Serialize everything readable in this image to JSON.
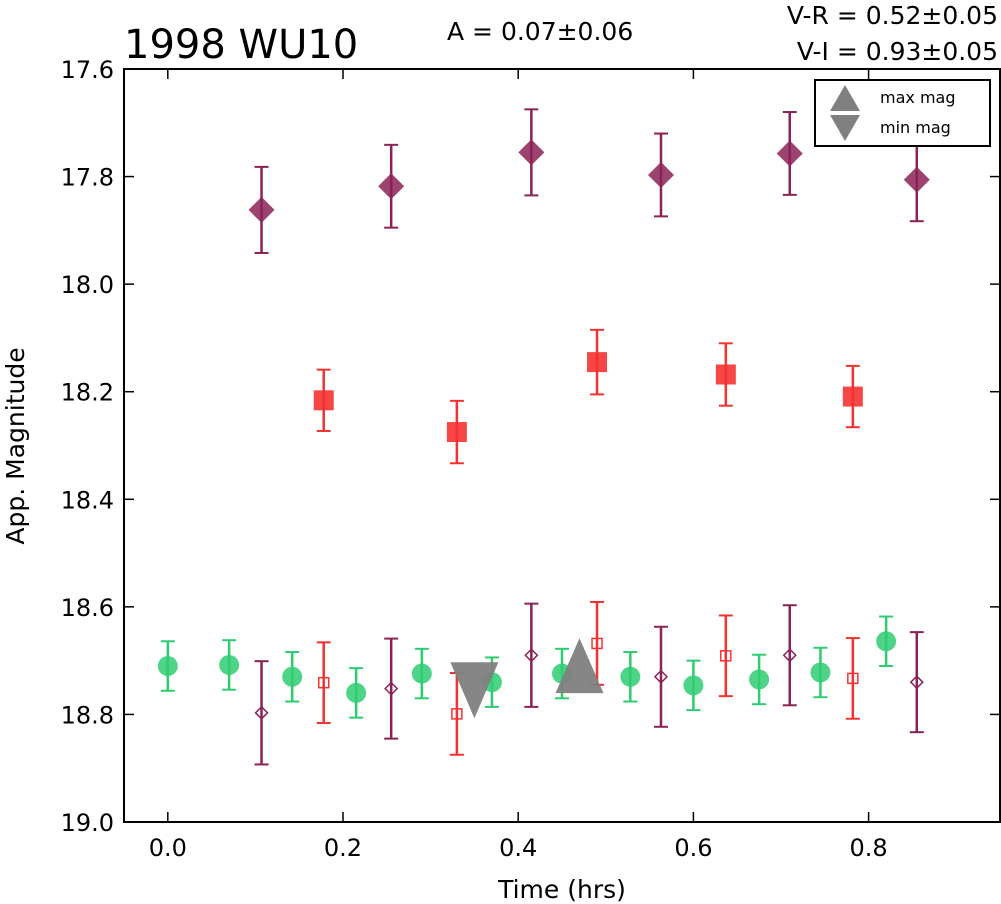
{
  "chart_data": {
    "type": "scatter",
    "title": "1998 WU10",
    "xlabel": "Time (hrs)",
    "ylabel": "App. Magnitude",
    "xlim": [
      -0.05,
      0.95
    ],
    "ylim": [
      19.0,
      17.6
    ],
    "y_inverted": true,
    "xticks": [
      "0.0",
      "0.2",
      "0.4",
      "0.6",
      "0.8"
    ],
    "xtick_values": [
      0.0,
      0.2,
      0.4,
      0.6,
      0.8
    ],
    "yticks": [
      "17.6",
      "17.8",
      "18.0",
      "18.2",
      "18.4",
      "18.6",
      "18.8",
      "19.0"
    ],
    "ytick_values": [
      17.6,
      17.8,
      18.0,
      18.2,
      18.4,
      18.6,
      18.8,
      19.0
    ],
    "annotations": {
      "amplitude": "A  = 0.07±0.06",
      "v_r": "V-R = 0.52±0.05",
      "v_i": "V-I  = 0.93±0.05"
    },
    "legend": {
      "position": "top-right",
      "entries": [
        {
          "label": "max mag",
          "marker": "triangle-up"
        },
        {
          "label": "min mag",
          "marker": "triangle-down"
        }
      ]
    },
    "series": [
      {
        "marker": "diamond-filled",
        "color": "#8b2257",
        "x": [
          0.107,
          0.255,
          0.415,
          0.563,
          0.71,
          0.855
        ],
        "y": [
          17.862,
          17.818,
          17.755,
          17.797,
          17.757,
          17.806
        ],
        "err": [
          0.08,
          0.077,
          0.08,
          0.077,
          0.077,
          0.077
        ]
      },
      {
        "marker": "square-filled",
        "color": "#f53232",
        "x": [
          0.178,
          0.33,
          0.49,
          0.637,
          0.782
        ],
        "y": [
          18.216,
          18.275,
          18.145,
          18.168,
          18.209
        ],
        "err": [
          0.057,
          0.058,
          0.06,
          0.058,
          0.057
        ]
      },
      {
        "marker": "circle-filled",
        "color": "#2ecc71",
        "x": [
          0.0,
          0.07,
          0.142,
          0.215,
          0.29,
          0.37,
          0.45,
          0.528,
          0.6,
          0.675,
          0.745,
          0.82
        ],
        "y": [
          18.71,
          18.708,
          18.73,
          18.76,
          18.724,
          18.74,
          18.724,
          18.73,
          18.746,
          18.735,
          18.722,
          18.664
        ],
        "err": [
          0.046,
          0.046,
          0.046,
          0.046,
          0.046,
          0.046,
          0.046,
          0.046,
          0.046,
          0.046,
          0.046,
          0.046
        ]
      },
      {
        "marker": "square-open",
        "color": "#f53232",
        "x": [
          0.178,
          0.33,
          0.49,
          0.637,
          0.782
        ],
        "y": [
          18.741,
          18.799,
          18.668,
          18.691,
          18.733
        ],
        "err": [
          0.075,
          0.076,
          0.077,
          0.075,
          0.075
        ]
      },
      {
        "marker": "diamond-open",
        "color": "#8b2257",
        "x": [
          0.107,
          0.255,
          0.415,
          0.563,
          0.71,
          0.855
        ],
        "y": [
          18.797,
          18.752,
          18.69,
          18.73,
          18.69,
          18.74
        ],
        "err": [
          0.096,
          0.093,
          0.096,
          0.093,
          0.093,
          0.093
        ]
      }
    ],
    "extrema": [
      {
        "label": "max mag",
        "marker": "triangle-up",
        "color": "#808080",
        "x": 0.47,
        "y": 18.714
      },
      {
        "label": "min mag",
        "marker": "triangle-down",
        "color": "#808080",
        "x": 0.35,
        "y": 18.755
      }
    ]
  }
}
